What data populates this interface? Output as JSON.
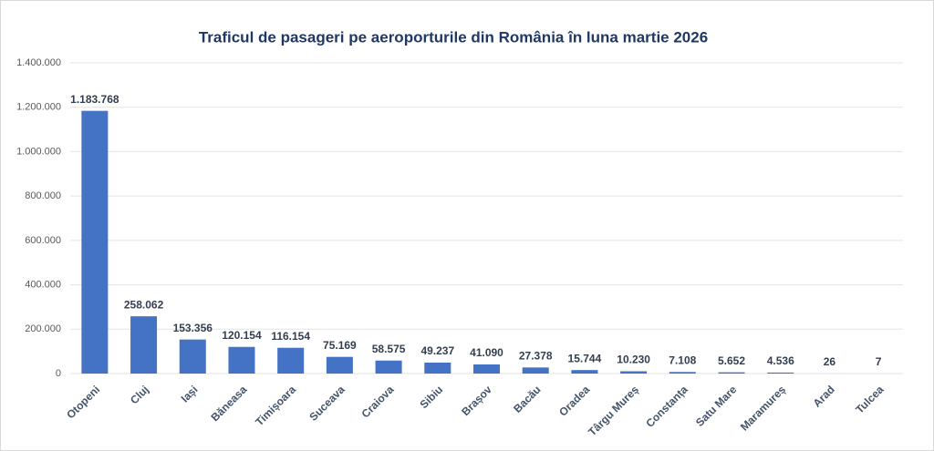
{
  "chart_data": {
    "type": "bar",
    "title": "Traficul de pasageri pe aeroporturile din România în luna martie 2026",
    "categories": [
      "Otopeni",
      "Cluj",
      "Iași",
      "Băneasa",
      "Timișoara",
      "Suceava",
      "Craiova",
      "Sibiu",
      "Brașov",
      "Bacău",
      "Oradea",
      "Târgu Mureș",
      "Constanța",
      "Satu Mare",
      "Maramureș",
      "Arad",
      "Tulcea"
    ],
    "values": [
      1183768,
      258062,
      153356,
      120154,
      116154,
      75169,
      58575,
      49237,
      41090,
      27378,
      15744,
      10230,
      7108,
      5652,
      4536,
      26,
      7
    ],
    "value_labels": [
      "1.183.768",
      "258.062",
      "153.356",
      "120.154",
      "116.154",
      "75.169",
      "58.575",
      "49.237",
      "41.090",
      "27.378",
      "15.744",
      "10.230",
      "7.108",
      "5.652",
      "4.536",
      "26",
      "7"
    ],
    "color": "#4472c4",
    "ylim": [
      0,
      1400000
    ],
    "yticks": [
      0,
      {
        "value": 200000,
        "label": "200.000"
      },
      {
        "value": 400000,
        "label": "400.000"
      },
      {
        "value": 600000,
        "label": "600.000"
      },
      {
        "value": 800000,
        "label": "800.000"
      },
      {
        "value": 1000000,
        "label": "1.000.000"
      },
      {
        "value": 1200000,
        "label": "1.200.000"
      },
      {
        "value": 1400000,
        "label": "1.400.000"
      }
    ],
    "grid": true
  }
}
